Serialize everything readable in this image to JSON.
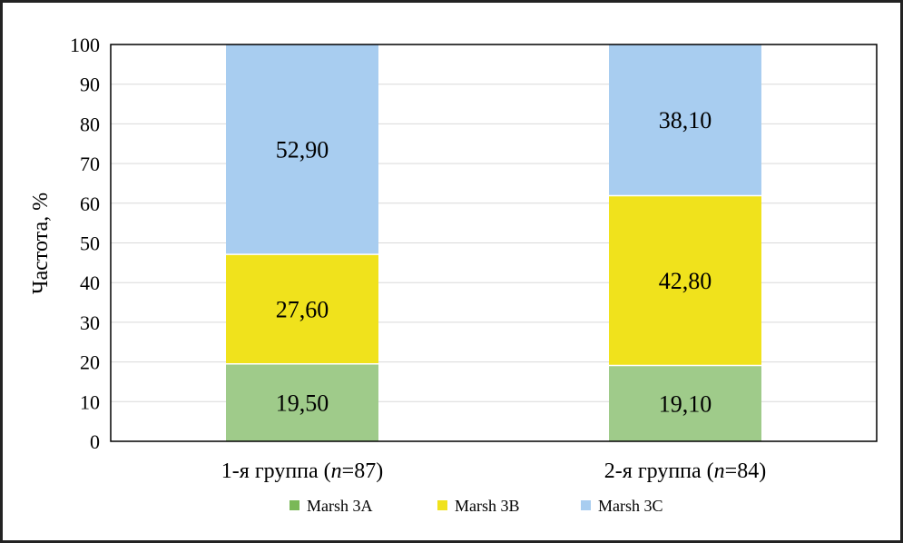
{
  "chart_data": {
    "type": "bar",
    "stacked": true,
    "categories": [
      "1-я группа (n=87)",
      "2-я группа (n=84)"
    ],
    "category_parts": [
      {
        "prefix": "1-я группа (",
        "italic": "n",
        "suffix": "=87)"
      },
      {
        "prefix": "2-я группа (",
        "italic": "n",
        "suffix": "=84)"
      }
    ],
    "series": [
      {
        "name": "Marsh 3A",
        "color": "#9fcb8a",
        "legend_color": "#7ab857",
        "values": [
          19.5,
          19.1
        ],
        "labels": [
          "19,50",
          "19,10"
        ]
      },
      {
        "name": "Marsh 3B",
        "color": "#f0e21c",
        "legend_color": "#f0e21c",
        "values": [
          27.6,
          42.8
        ],
        "labels": [
          "27,60",
          "42,80"
        ]
      },
      {
        "name": "Marsh 3C",
        "color": "#a8cdf0",
        "legend_color": "#a8cdf0",
        "values": [
          52.9,
          38.1
        ],
        "labels": [
          "52,90",
          "38,10"
        ]
      }
    ],
    "ylabel": "Частота, %",
    "ylim": [
      0,
      100
    ],
    "yticks": [
      0,
      10,
      20,
      30,
      40,
      50,
      60,
      70,
      80,
      90,
      100
    ],
    "grid": true,
    "legend_position": "bottom"
  }
}
